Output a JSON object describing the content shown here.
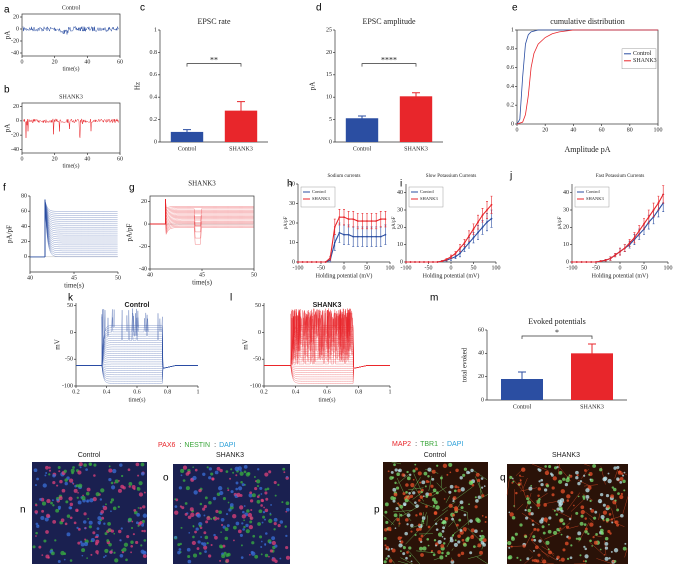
{
  "chart_data": [
    {
      "type": "trace",
      "label": "a",
      "title": "Control",
      "xlabel": "time(s)",
      "ylabel": "pA",
      "xlim": [
        0,
        60
      ],
      "xticks": [
        0,
        20,
        40,
        60
      ],
      "ylim": [
        -45,
        25
      ],
      "yticks": [
        -40,
        -20,
        0,
        20
      ],
      "color": "#2b4ea2"
    },
    {
      "type": "trace",
      "label": "b",
      "title": "SHANK3",
      "xlabel": "time(s)",
      "ylabel": "pA",
      "xlim": [
        0,
        60
      ],
      "xticks": [
        0,
        20,
        40,
        60
      ],
      "ylim": [
        -45,
        25
      ],
      "yticks": [
        -40,
        -20,
        0,
        20
      ],
      "color": "#e8262b"
    },
    {
      "type": "bar",
      "label": "c",
      "title": "EPSC rate",
      "ylabel": "Hz",
      "categories": [
        "Control",
        "SHANK3"
      ],
      "values": [
        0.09,
        0.28
      ],
      "errors": [
        0.02,
        0.08
      ],
      "colors": [
        "#2b4ea2",
        "#e8262b"
      ],
      "ylim": [
        0,
        1
      ],
      "yticks": [
        0,
        0.2,
        0.4,
        0.6,
        0.8,
        1
      ],
      "annotation": "**"
    },
    {
      "type": "bar",
      "label": "d",
      "title": "EPSC amplitude",
      "ylabel": "pA",
      "categories": [
        "Control",
        "SHANK3"
      ],
      "values": [
        5.3,
        10.2
      ],
      "errors": [
        0.5,
        0.8
      ],
      "colors": [
        "#2b4ea2",
        "#e8262b"
      ],
      "ylim": [
        0,
        25
      ],
      "yticks": [
        0,
        5,
        10,
        15,
        20,
        25
      ],
      "annotation": "****"
    },
    {
      "type": "line",
      "label": "e",
      "title": "cumulative distribution",
      "xlabel": "Amplitude pA",
      "xlim": [
        0,
        100
      ],
      "xticks": [
        0,
        20,
        40,
        60,
        80,
        100
      ],
      "ylim": [
        0,
        1
      ],
      "yticks": [
        0,
        0.2,
        0.4,
        0.6,
        0.8,
        1
      ],
      "legend": "right",
      "series": [
        {
          "name": "Control",
          "color": "#2b4ea2",
          "x": [
            0,
            2,
            4,
            6,
            8,
            10,
            15,
            20,
            100
          ],
          "values": [
            0,
            0.05,
            0.5,
            0.85,
            0.95,
            0.98,
            1,
            1,
            1
          ]
        },
        {
          "name": "SHANK3",
          "color": "#e8262b",
          "x": [
            0,
            4,
            6,
            8,
            10,
            12,
            15,
            20,
            25,
            30,
            40,
            100
          ],
          "values": [
            0,
            0.02,
            0.1,
            0.3,
            0.6,
            0.75,
            0.85,
            0.92,
            0.96,
            0.98,
            1,
            1
          ]
        }
      ]
    },
    {
      "type": "traces",
      "label": "f",
      "xlabel": "time(s)",
      "ylabel": "pA/pF",
      "xlim": [
        40,
        50
      ],
      "xticks": [
        40,
        45,
        50
      ],
      "ylim": [
        -20,
        80
      ],
      "yticks": [
        0,
        20,
        40,
        60,
        80
      ],
      "color": "#2b4ea2"
    },
    {
      "type": "traces",
      "label": "g",
      "title": "SHANK3",
      "xlabel": "time(s)",
      "ylabel": "pA/pF",
      "xlim": [
        40,
        50
      ],
      "xticks": [
        40,
        45,
        50
      ],
      "ylim": [
        -40,
        25
      ],
      "yticks": [
        -40,
        -20,
        0,
        20
      ],
      "color": "#e8262b"
    },
    {
      "type": "errorline",
      "label": "h",
      "title": "Sodium currents",
      "xlabel": "Holding potential (mV)",
      "ylabel": "pA/pF",
      "xlim": [
        -100,
        100
      ],
      "xticks": [
        -100,
        -50,
        0,
        50,
        100
      ],
      "ylim": [
        0,
        40
      ],
      "yticks": [
        0,
        10,
        20,
        30,
        40
      ],
      "legend": "upper left",
      "x": [
        -100,
        -90,
        -80,
        -70,
        -60,
        -50,
        -40,
        -30,
        -20,
        -10,
        0,
        10,
        20,
        30,
        40,
        50,
        60,
        70,
        80,
        90
      ],
      "series": [
        {
          "name": "Control",
          "color": "#2b4ea2",
          "values": [
            0,
            0,
            0,
            0,
            0,
            0,
            0,
            1,
            10,
            15,
            14,
            14,
            13,
            13,
            13,
            13,
            13,
            13,
            13,
            14
          ],
          "errors": [
            0,
            0,
            0,
            0,
            0,
            0,
            0,
            1,
            4,
            5,
            5,
            5,
            5,
            5,
            5,
            5,
            5,
            5,
            5,
            5
          ]
        },
        {
          "name": "SHANK3",
          "color": "#e8262b",
          "values": [
            0,
            0,
            0,
            0,
            0,
            0,
            0,
            2,
            18,
            23,
            23,
            22,
            22,
            21,
            21,
            21,
            21,
            21,
            22,
            22
          ],
          "errors": [
            0,
            0,
            0,
            0,
            0,
            0,
            0,
            1,
            4,
            4,
            4,
            4,
            4,
            4,
            4,
            4,
            4,
            4,
            4,
            4
          ]
        }
      ]
    },
    {
      "type": "errorline",
      "label": "i",
      "title": "Slow Potassium Currents",
      "xlabel": "Holding potential (mV)",
      "ylabel": "pA/pF",
      "xlim": [
        -100,
        100
      ],
      "xticks": [
        -100,
        -50,
        0,
        50,
        100
      ],
      "ylim": [
        0,
        45
      ],
      "yticks": [
        0,
        10,
        20,
        30,
        40
      ],
      "legend": "upper left",
      "x": [
        -100,
        -90,
        -80,
        -70,
        -60,
        -50,
        -40,
        -30,
        -20,
        -10,
        0,
        10,
        20,
        30,
        40,
        50,
        60,
        70,
        80,
        90
      ],
      "series": [
        {
          "name": "Control",
          "color": "#2b4ea2",
          "values": [
            0,
            0,
            0,
            0,
            0,
            0,
            0,
            0,
            0.5,
            1,
            2,
            3,
            5,
            8,
            11,
            14,
            17,
            20,
            23,
            25
          ],
          "errors": [
            0,
            0,
            0,
            0,
            0,
            0,
            0,
            0,
            0.3,
            0.5,
            1,
            1,
            2,
            2,
            3,
            3,
            4,
            4,
            5,
            5
          ]
        },
        {
          "name": "SHANK3",
          "color": "#e8262b",
          "values": [
            0,
            0,
            0,
            0,
            0,
            0,
            0,
            0,
            0.5,
            1.5,
            3,
            5,
            8,
            11,
            15,
            19,
            23,
            27,
            30,
            33
          ],
          "errors": [
            0,
            0,
            0,
            0,
            0,
            0,
            0,
            0,
            0.3,
            0.5,
            1,
            1,
            2,
            2,
            3,
            3,
            4,
            4,
            5,
            5
          ]
        }
      ]
    },
    {
      "type": "errorline",
      "label": "j",
      "title": "Fast Potassium Currents",
      "xlabel": "Holding potential (mV)",
      "ylabel": "pA/pF",
      "xlim": [
        -100,
        100
      ],
      "xticks": [
        -100,
        -50,
        0,
        50,
        100
      ],
      "ylim": [
        0,
        45
      ],
      "yticks": [
        0,
        10,
        20,
        30,
        40
      ],
      "legend": "upper left",
      "x": [
        -100,
        -90,
        -80,
        -70,
        -60,
        -50,
        -40,
        -30,
        -20,
        -10,
        0,
        10,
        20,
        30,
        40,
        50,
        60,
        70,
        80,
        90
      ],
      "series": [
        {
          "name": "Control",
          "color": "#2b4ea2",
          "values": [
            0,
            0,
            0,
            0,
            0,
            0,
            0.5,
            1,
            2,
            4,
            6,
            8,
            10,
            13,
            16,
            19,
            23,
            26,
            30,
            34
          ],
          "errors": [
            0,
            0,
            0,
            0,
            0,
            0,
            0.3,
            0.5,
            1,
            1,
            2,
            2,
            2,
            3,
            3,
            3,
            4,
            4,
            4,
            5
          ]
        },
        {
          "name": "SHANK3",
          "color": "#e8262b",
          "values": [
            0,
            0,
            0,
            0,
            0,
            0,
            0.5,
            1,
            2,
            4,
            6,
            8,
            11,
            14,
            18,
            22,
            26,
            30,
            34,
            39
          ],
          "errors": [
            0,
            0,
            0,
            0,
            0,
            0,
            0.3,
            0.5,
            1,
            1,
            2,
            2,
            2,
            3,
            3,
            3,
            4,
            4,
            4,
            5
          ]
        }
      ]
    },
    {
      "type": "traces",
      "label": "k",
      "title": "Control",
      "xlabel": "time(s)",
      "ylabel": "mV",
      "xlim": [
        0.2,
        1
      ],
      "xticks": [
        0.2,
        0.4,
        0.6,
        0.8,
        1
      ],
      "ylim": [
        -100,
        55
      ],
      "yticks": [
        -100,
        -50,
        0,
        50
      ],
      "color": "#2b4ea2"
    },
    {
      "type": "traces",
      "label": "l",
      "title": "SHANK3",
      "xlabel": "time(s)",
      "ylabel": "mV",
      "xlim": [
        0.2,
        1
      ],
      "xticks": [
        0.2,
        0.4,
        0.6,
        0.8,
        1
      ],
      "ylim": [
        -100,
        55
      ],
      "yticks": [
        -100,
        -50,
        0,
        50
      ],
      "color": "#e8262b"
    },
    {
      "type": "bar",
      "label": "m",
      "title": "Evoked potentials",
      "ylabel": "total evoked",
      "categories": [
        "Control",
        "SHANK3"
      ],
      "values": [
        18,
        40
      ],
      "errors": [
        6,
        8
      ],
      "colors": [
        "#2b4ea2",
        "#e8262b"
      ],
      "ylim": [
        0,
        60
      ],
      "yticks": [
        0,
        20,
        40,
        60
      ],
      "annotation": "*"
    }
  ],
  "images": [
    {
      "separator": ":",
      "stains": [
        {
          "name": "PAX6",
          "color": "#e8262b"
        },
        {
          "name": "NESTIN",
          "color": "#3aa63a"
        },
        {
          "name": "DAPI",
          "color": "#2a9fd8"
        }
      ],
      "panels": [
        {
          "label": "n",
          "title": "Control"
        },
        {
          "label": "o",
          "title": "SHANK3"
        }
      ]
    },
    {
      "separator": ":",
      "stains": [
        {
          "name": "MAP2",
          "color": "#e8262b"
        },
        {
          "name": "TBR1",
          "color": "#3aa63a"
        },
        {
          "name": "DAPI",
          "color": "#2a9fd8"
        }
      ],
      "panels": [
        {
          "label": "p",
          "title": "Control"
        },
        {
          "label": "q",
          "title": "SHANK3"
        }
      ]
    }
  ]
}
